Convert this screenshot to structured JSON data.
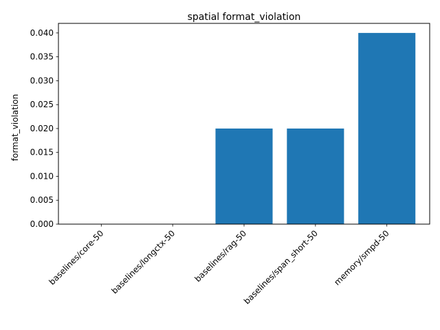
{
  "chart_data": {
    "type": "bar",
    "title": "spatial format_violation",
    "xlabel": "",
    "ylabel": "format_violation",
    "categories": [
      "baselines/core-50",
      "baselines/longctx-50",
      "baselines/rag-50",
      "baselines/span_short-50",
      "memory/smpd-50"
    ],
    "values": [
      0.0,
      0.0,
      0.02,
      0.02,
      0.04
    ],
    "ylim": [
      0,
      0.042
    ],
    "yticks": [
      0.0,
      0.005,
      0.01,
      0.015,
      0.02,
      0.025,
      0.03,
      0.035,
      0.04
    ],
    "ytick_labels": [
      "0.000",
      "0.005",
      "0.010",
      "0.015",
      "0.020",
      "0.025",
      "0.030",
      "0.035",
      "0.040"
    ],
    "bar_color": "#1f77b4",
    "grid": false,
    "legend": "none"
  }
}
